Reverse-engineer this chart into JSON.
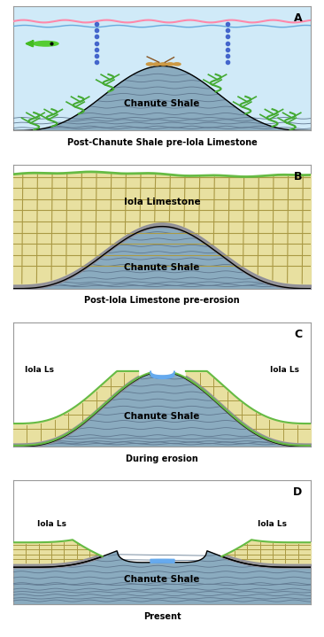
{
  "panel_labels": [
    "A",
    "B",
    "C",
    "D"
  ],
  "captions": [
    "Post-Chanute Shale pre-Iola Limestone",
    "Post-Iola Limestone pre-erosion",
    "During erosion",
    "Present"
  ],
  "shale_color": "#8aabbf",
  "limestone_color": "#e8e0a0",
  "water_color": "#d0eaf8",
  "green_top": "#66bb44",
  "seaweed_color": "#44aa33",
  "fig_bg": "#ffffff",
  "border_color": "#999999",
  "blue_dot": "#4466cc",
  "erosion_water": "#66aaee",
  "dark_contact": "#888899",
  "crack_color": "#aa9944",
  "shale_line": "#607890",
  "pink_water": "#ff88aa",
  "blue_water_line": "#66aadd"
}
